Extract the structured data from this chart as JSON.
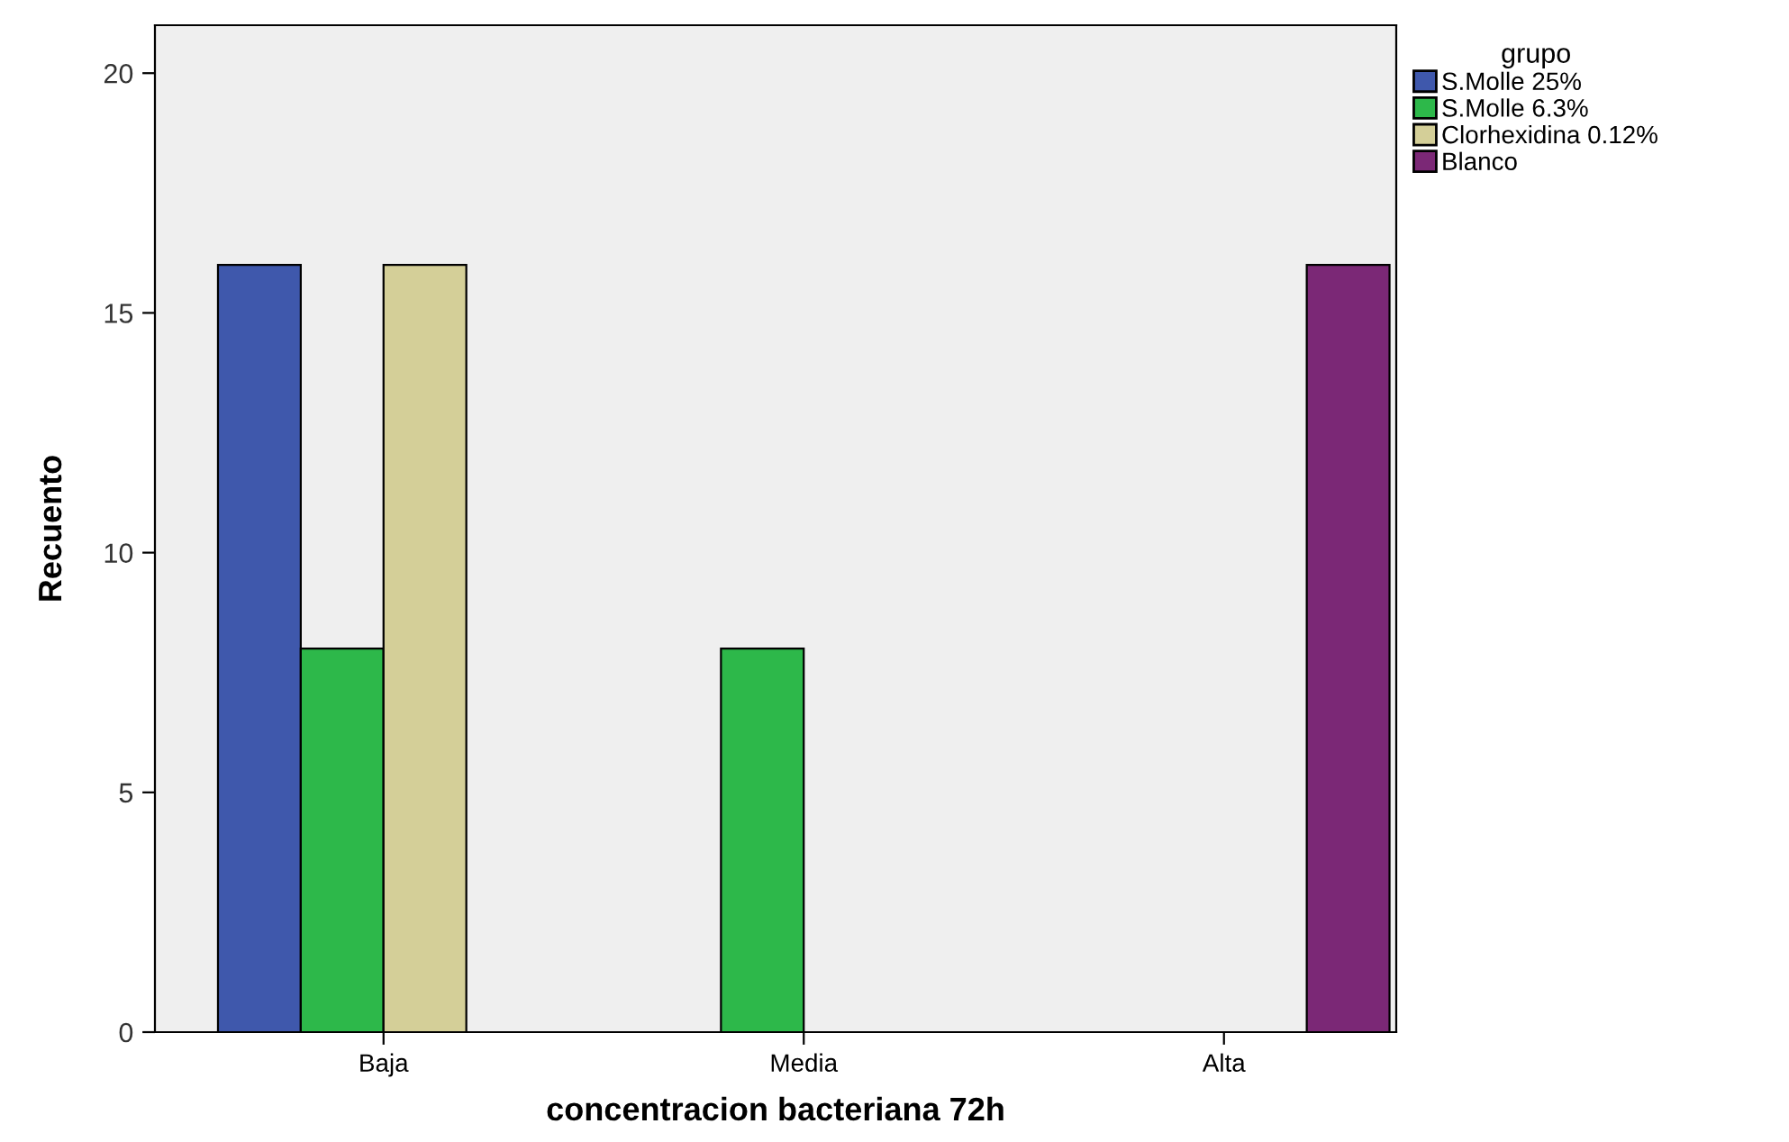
{
  "chart_data": {
    "type": "bar",
    "xlabel": "concentracion bacteriana 72h",
    "ylabel": "Recuento",
    "legend_title": "grupo",
    "legend": "right",
    "categories": [
      "Baja",
      "Media",
      "Alta"
    ],
    "series": [
      {
        "name": "S.Molle 25%",
        "color": "#3f58ac",
        "values": [
          16,
          0,
          0
        ]
      },
      {
        "name": "S.Molle 6.3%",
        "color": "#2db84a",
        "values": [
          8,
          8,
          0
        ]
      },
      {
        "name": "Clorhexidina 0.12%",
        "color": "#d4cf98",
        "values": [
          16,
          0,
          0
        ]
      },
      {
        "name": "Blanco",
        "color": "#7b2876",
        "values": [
          0,
          0,
          16
        ]
      }
    ],
    "ylim": [
      0,
      21
    ],
    "yticks": [
      0,
      5,
      10,
      15,
      20
    ],
    "grid": false
  }
}
